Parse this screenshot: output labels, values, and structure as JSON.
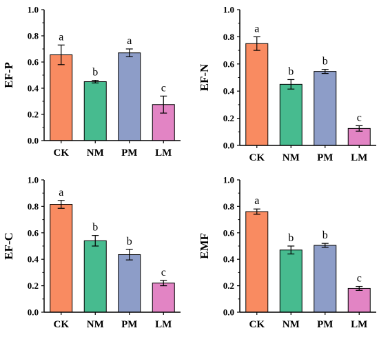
{
  "chart_data": [
    {
      "type": "bar",
      "ylabel": "EF-P",
      "categories": [
        "CK",
        "NM",
        "PM",
        "LM"
      ],
      "values": [
        0.655,
        0.45,
        0.67,
        0.275
      ],
      "errors": [
        0.075,
        0.01,
        0.03,
        0.065
      ],
      "labels": [
        "a",
        "b",
        "a",
        "c"
      ],
      "ylim": [
        0,
        1.0
      ],
      "yticks": [
        "0.0",
        "0.2",
        "0.4",
        "0.6",
        "0.8",
        "1.0"
      ]
    },
    {
      "type": "bar",
      "ylabel": "EF-N",
      "categories": [
        "CK",
        "NM",
        "PM",
        "LM"
      ],
      "values": [
        0.75,
        0.45,
        0.545,
        0.125
      ],
      "errors": [
        0.05,
        0.035,
        0.015,
        0.02
      ],
      "labels": [
        "a",
        "b",
        "b",
        "c"
      ],
      "ylim": [
        0,
        1.0
      ],
      "yticks": [
        "0.0",
        "0.2",
        "0.4",
        "0.6",
        "0.8",
        "1.0"
      ]
    },
    {
      "type": "bar",
      "ylabel": "EF-C",
      "categories": [
        "CK",
        "NM",
        "PM",
        "LM"
      ],
      "values": [
        0.815,
        0.54,
        0.435,
        0.22
      ],
      "errors": [
        0.03,
        0.04,
        0.04,
        0.02
      ],
      "labels": [
        "a",
        "b",
        "b",
        "c"
      ],
      "ylim": [
        0,
        1.0
      ],
      "yticks": [
        "0.0",
        "0.2",
        "0.4",
        "0.6",
        "0.8",
        "1.0"
      ]
    },
    {
      "type": "bar",
      "ylabel": "EMF",
      "categories": [
        "CK",
        "NM",
        "PM",
        "LM"
      ],
      "values": [
        0.76,
        0.47,
        0.505,
        0.18
      ],
      "errors": [
        0.02,
        0.03,
        0.015,
        0.015
      ],
      "labels": [
        "a",
        "b",
        "b",
        "c"
      ],
      "ylim": [
        0,
        1.0
      ],
      "yticks": [
        "0.0",
        "0.2",
        "0.4",
        "0.6",
        "0.8",
        "1.0"
      ]
    }
  ],
  "bar_colors": {
    "CK": "#f98b61",
    "NM": "#47bb8f",
    "PM": "#8d9dc8",
    "LM": "#e284c4"
  }
}
